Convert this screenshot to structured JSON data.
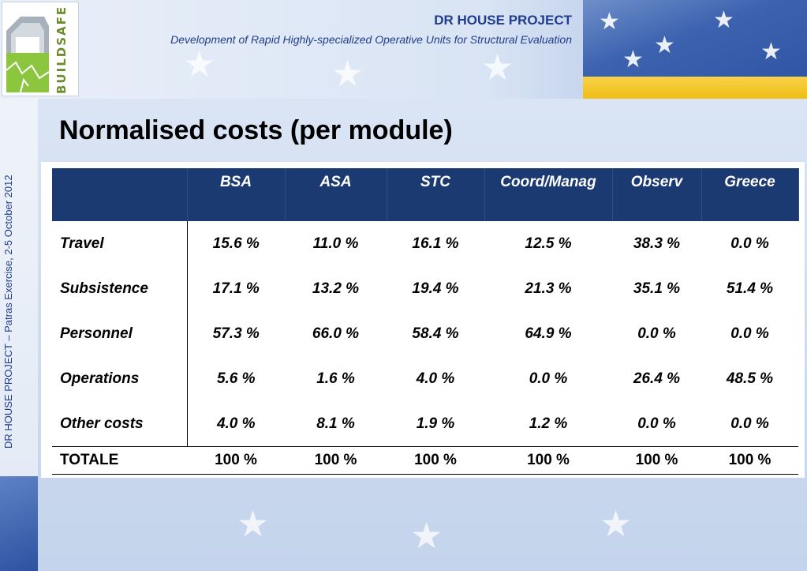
{
  "header": {
    "project_title": "DR HOUSE PROJECT",
    "project_subtitle": "Development of Rapid Highly-specialized Operative Units for Structural Evaluation",
    "logo_text": "BUILDSAFE"
  },
  "sidebar": {
    "vertical_text": "DR HOUSE PROJECT – Patras Exercise, 2-5 October 2012"
  },
  "slide": {
    "title": "Normalised costs (per module)"
  },
  "table": {
    "columns": [
      "BSA",
      "ASA",
      "STC",
      "Coord/Manag",
      "Observ",
      "Greece"
    ],
    "rows": [
      {
        "label": "Travel",
        "values": [
          "15.6 %",
          "11.0 %",
          "16.1 %",
          "12.5 %",
          "38.3 %",
          "0.0 %"
        ]
      },
      {
        "label": "Subsistence",
        "values": [
          "17.1 %",
          "13.2 %",
          "19.4 %",
          "21.3 %",
          "35.1 %",
          "51.4 %"
        ]
      },
      {
        "label": "Personnel",
        "values": [
          "57.3 %",
          "66.0 %",
          "58.4 %",
          "64.9 %",
          "0.0 %",
          "0.0 %"
        ]
      },
      {
        "label": "Operations",
        "values": [
          "5.6 %",
          "1.6 %",
          "4.0 %",
          "0.0 %",
          "26.4 %",
          "48.5 %"
        ]
      },
      {
        "label": "Other costs",
        "values": [
          "4.0 %",
          "8.1 %",
          "1.9 %",
          "1.2 %",
          "0.0 %",
          "0.0 %"
        ]
      }
    ],
    "total": {
      "label": "TOTALE",
      "values": [
        "100 %",
        "100 %",
        "100 %",
        "100 %",
        "100 %",
        "100 %"
      ]
    }
  },
  "colors": {
    "header_text": "#1f3d8c",
    "table_header_bg": "#1c3a72",
    "logo_green": "#8cc63f",
    "flag_gold": "#f1bd16"
  },
  "icons": [
    "buildsafe-house-logo-icon",
    "eu-star-icon"
  ]
}
